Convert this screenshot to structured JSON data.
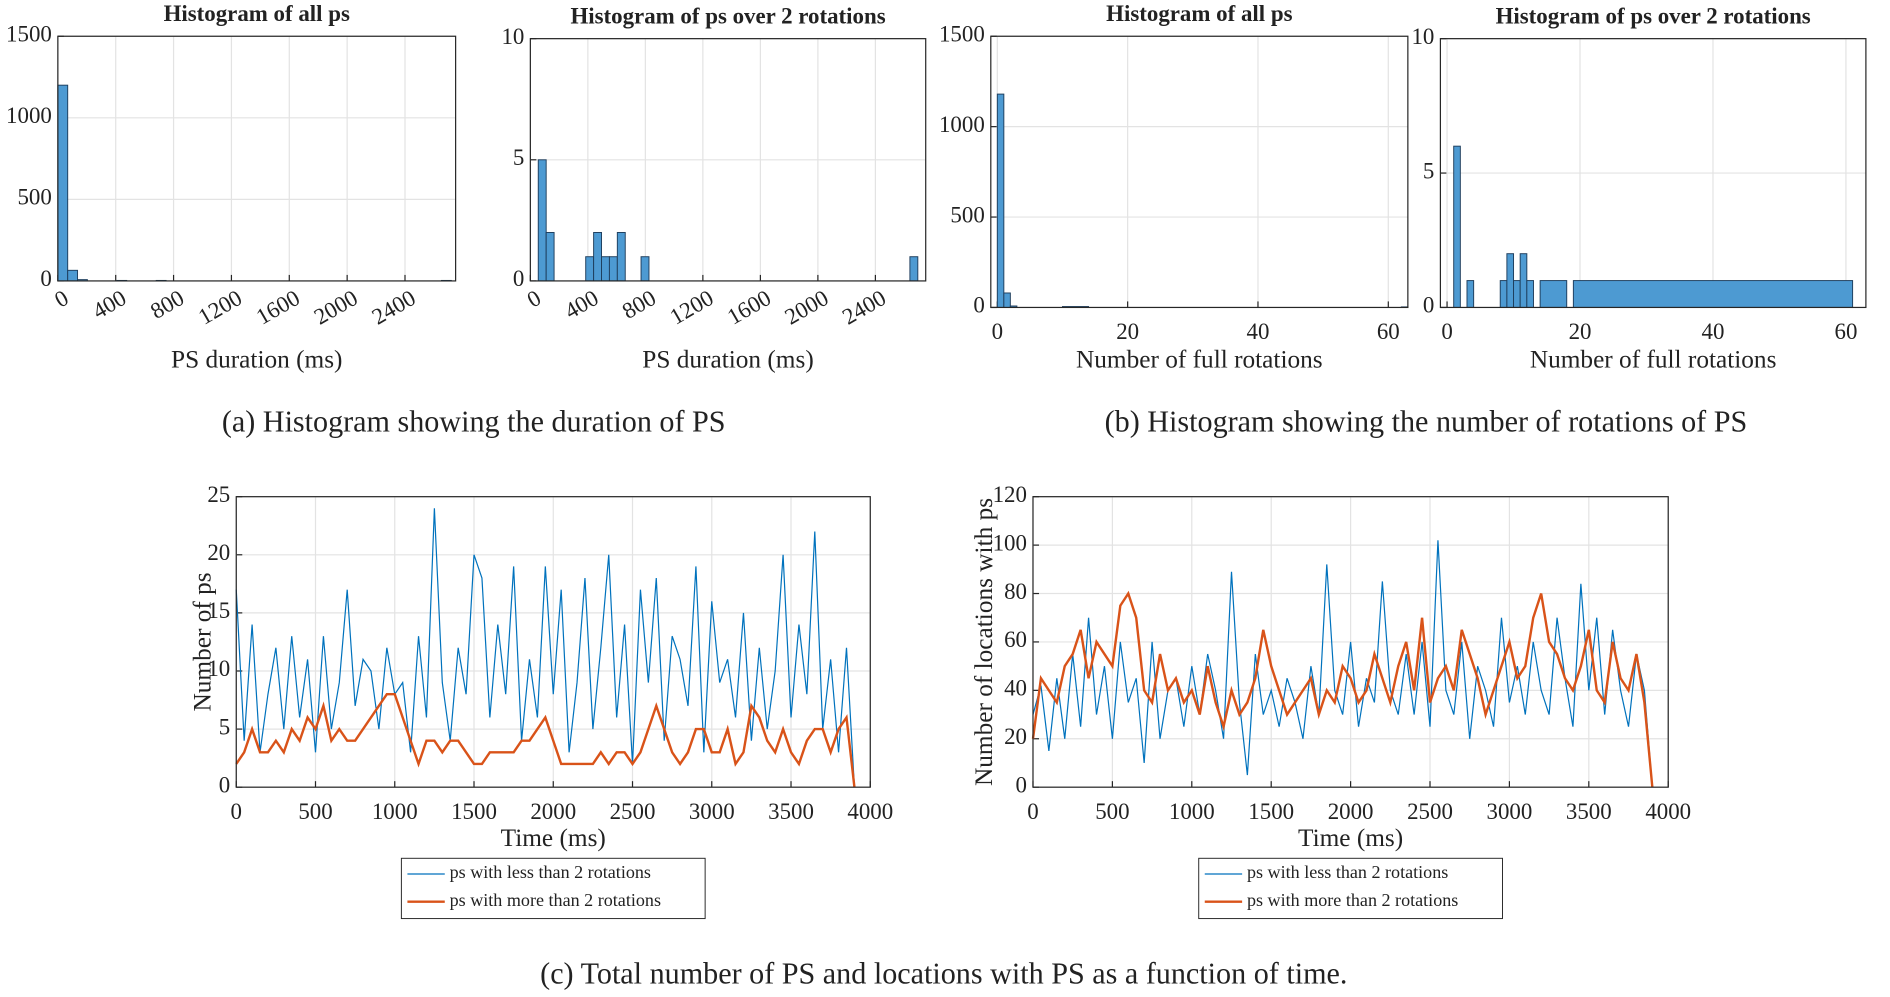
{
  "chart_data": [
    {
      "type": "histogram",
      "title": "Histogram of all ps",
      "xlabel": "PS duration (ms)",
      "color": "#4d9ad2",
      "bins": [
        0,
        68,
        136,
        204,
        408,
        476,
        680,
        748,
        2652,
        2720
      ],
      "values": [
        1200,
        65,
        8,
        0,
        3,
        0,
        3,
        0,
        3
      ],
      "xlim": [
        0,
        2750
      ],
      "xticks": [
        0,
        400,
        800,
        1200,
        1600,
        2000,
        2400
      ],
      "xtick_rotation": -30,
      "ylim": [
        0,
        1500
      ],
      "yticks": [
        0,
        500,
        1000,
        1500
      ],
      "grid": true
    },
    {
      "type": "histogram",
      "title": "Histogram of ps over 2 rotations",
      "xlabel": "PS duration (ms)",
      "color": "#4d9ad2",
      "bins": [
        55,
        110,
        165,
        385,
        440,
        495,
        550,
        605,
        660,
        770,
        825,
        2640,
        2695
      ],
      "values": [
        5,
        2,
        0,
        1,
        2,
        1,
        1,
        2,
        0,
        1,
        0,
        1
      ],
      "xlim": [
        0,
        2750
      ],
      "xticks": [
        0,
        400,
        800,
        1200,
        1600,
        2000,
        2400
      ],
      "xtick_rotation": -30,
      "ylim": [
        0,
        10
      ],
      "yticks": [
        0,
        5,
        10
      ],
      "grid": true
    },
    {
      "type": "histogram",
      "title": "Histogram of all ps",
      "xlabel": "Number of full rotations",
      "color": "#4d9ad2",
      "bins": [
        0,
        1,
        2,
        3,
        10,
        14,
        62,
        63
      ],
      "values": [
        1180,
        80,
        8,
        0,
        5,
        0,
        3
      ],
      "xlim": [
        -1,
        63
      ],
      "xticks": [
        0,
        20,
        40,
        60
      ],
      "ylim": [
        0,
        1500
      ],
      "yticks": [
        0,
        500,
        1000,
        1500
      ],
      "grid": true
    },
    {
      "type": "histogram",
      "title": "Histogram of ps over 2 rotations",
      "xlabel": "Number of full rotations",
      "color": "#4d9ad2",
      "bins": [
        1,
        2,
        3,
        4,
        8,
        9,
        10,
        11,
        12,
        13,
        14,
        18,
        19,
        61,
        62
      ],
      "values": [
        6,
        0,
        1,
        0,
        1,
        2,
        1,
        2,
        1,
        0,
        1,
        0,
        1,
        0
      ],
      "xlim": [
        -1,
        63
      ],
      "xticks": [
        0,
        20,
        40,
        60
      ],
      "ylim": [
        0,
        10
      ],
      "yticks": [
        0,
        5,
        10
      ],
      "grid": true
    },
    {
      "type": "line",
      "xlabel": "Time (ms)",
      "ylabel": "Number of ps",
      "legend_loc": "below",
      "x": [
        0,
        50,
        100,
        150,
        200,
        250,
        300,
        350,
        400,
        450,
        500,
        550,
        600,
        650,
        700,
        750,
        800,
        850,
        900,
        950,
        1000,
        1050,
        1100,
        1150,
        1200,
        1250,
        1300,
        1350,
        1400,
        1450,
        1500,
        1550,
        1600,
        1650,
        1700,
        1750,
        1800,
        1850,
        1900,
        1950,
        2000,
        2050,
        2100,
        2150,
        2200,
        2250,
        2300,
        2350,
        2400,
        2450,
        2500,
        2550,
        2600,
        2650,
        2700,
        2750,
        2800,
        2850,
        2900,
        2950,
        3000,
        3050,
        3100,
        3150,
        3200,
        3250,
        3300,
        3350,
        3400,
        3450,
        3500,
        3550,
        3600,
        3650,
        3700,
        3750,
        3800,
        3850,
        3900
      ],
      "series": [
        {
          "name": "ps with less than 2 rotations",
          "color": "#0072bd",
          "values": [
            17,
            4,
            14,
            3,
            8,
            12,
            5,
            13,
            6,
            11,
            3,
            13,
            5,
            9,
            17,
            7,
            11,
            10,
            5,
            12,
            8,
            9,
            3,
            13,
            6,
            24,
            9,
            4,
            12,
            8,
            20,
            18,
            6,
            14,
            8,
            19,
            4,
            11,
            6,
            19,
            8,
            17,
            3,
            9,
            18,
            5,
            12,
            20,
            6,
            14,
            2,
            17,
            9,
            18,
            4,
            13,
            11,
            7,
            19,
            3,
            16,
            9,
            11,
            6,
            15,
            4,
            12,
            5,
            10,
            20,
            6,
            14,
            8,
            22,
            5,
            11,
            3,
            12,
            0
          ]
        },
        {
          "name": "ps with more than 2 rotations",
          "color": "#d95319",
          "values": [
            2,
            3,
            5,
            3,
            3,
            4,
            3,
            5,
            4,
            6,
            5,
            7,
            4,
            5,
            4,
            4,
            5,
            6,
            7,
            8,
            8,
            6,
            4,
            2,
            4,
            4,
            3,
            4,
            4,
            3,
            2,
            2,
            3,
            3,
            3,
            3,
            4,
            4,
            5,
            6,
            4,
            2,
            2,
            2,
            2,
            2,
            3,
            2,
            3,
            3,
            2,
            3,
            5,
            7,
            5,
            3,
            2,
            3,
            5,
            5,
            3,
            3,
            5,
            2,
            3,
            7,
            6,
            4,
            3,
            5,
            3,
            2,
            4,
            5,
            5,
            3,
            5,
            6,
            0
          ]
        }
      ],
      "xlim": [
        0,
        4000
      ],
      "xticks": [
        0,
        500,
        1000,
        1500,
        2000,
        2500,
        3000,
        3500,
        4000
      ],
      "ylim": [
        0,
        25
      ],
      "yticks": [
        0,
        5,
        10,
        15,
        20,
        25
      ],
      "grid": true
    },
    {
      "type": "line",
      "xlabel": "Time (ms)",
      "ylabel": "Number of locations with ps",
      "legend_loc": "below",
      "x": [
        0,
        50,
        100,
        150,
        200,
        250,
        300,
        350,
        400,
        450,
        500,
        550,
        600,
        650,
        700,
        750,
        800,
        850,
        900,
        950,
        1000,
        1050,
        1100,
        1150,
        1200,
        1250,
        1300,
        1350,
        1400,
        1450,
        1500,
        1550,
        1600,
        1650,
        1700,
        1750,
        1800,
        1850,
        1900,
        1950,
        2000,
        2050,
        2100,
        2150,
        2200,
        2250,
        2300,
        2350,
        2400,
        2450,
        2500,
        2550,
        2600,
        2650,
        2700,
        2750,
        2800,
        2850,
        2900,
        2950,
        3000,
        3050,
        3100,
        3150,
        3200,
        3250,
        3300,
        3350,
        3400,
        3450,
        3500,
        3550,
        3600,
        3650,
        3700,
        3750,
        3800,
        3850,
        3900
      ],
      "series": [
        {
          "name": "ps with less than 2 rotations",
          "color": "#0072bd",
          "values": [
            30,
            42,
            15,
            45,
            20,
            55,
            25,
            70,
            30,
            50,
            20,
            60,
            35,
            45,
            10,
            60,
            20,
            40,
            45,
            25,
            50,
            30,
            55,
            40,
            20,
            89,
            35,
            5,
            55,
            30,
            40,
            25,
            45,
            35,
            20,
            50,
            30,
            92,
            40,
            30,
            60,
            25,
            45,
            35,
            85,
            40,
            30,
            55,
            30,
            60,
            25,
            102,
            40,
            30,
            60,
            20,
            50,
            40,
            25,
            70,
            35,
            50,
            30,
            60,
            40,
            30,
            70,
            45,
            25,
            84,
            40,
            70,
            30,
            65,
            40,
            25,
            55,
            40,
            0
          ]
        },
        {
          "name": "ps with more than 2 rotations",
          "color": "#d95319",
          "values": [
            20,
            45,
            40,
            35,
            50,
            55,
            65,
            45,
            60,
            55,
            50,
            75,
            80,
            70,
            40,
            35,
            55,
            40,
            45,
            35,
            40,
            30,
            50,
            35,
            25,
            40,
            30,
            35,
            45,
            65,
            50,
            40,
            30,
            35,
            40,
            45,
            30,
            40,
            35,
            50,
            45,
            35,
            40,
            55,
            45,
            35,
            50,
            60,
            40,
            70,
            35,
            45,
            50,
            40,
            65,
            55,
            45,
            30,
            40,
            50,
            60,
            45,
            50,
            70,
            80,
            60,
            55,
            45,
            40,
            50,
            65,
            40,
            35,
            60,
            45,
            40,
            55,
            35,
            0
          ]
        }
      ],
      "xlim": [
        0,
        4000
      ],
      "xticks": [
        0,
        500,
        1000,
        1500,
        2000,
        2500,
        3000,
        3500,
        4000
      ],
      "ylim": [
        0,
        120
      ],
      "yticks": [
        0,
        20,
        40,
        60,
        80,
        100,
        120
      ],
      "grid": true
    }
  ],
  "captions": [
    "(a) Histogram showing the duration of PS",
    "(b) Histogram showing the number of rotations of PS",
    "(c) Total number of PS and locations with PS as a function of time."
  ]
}
